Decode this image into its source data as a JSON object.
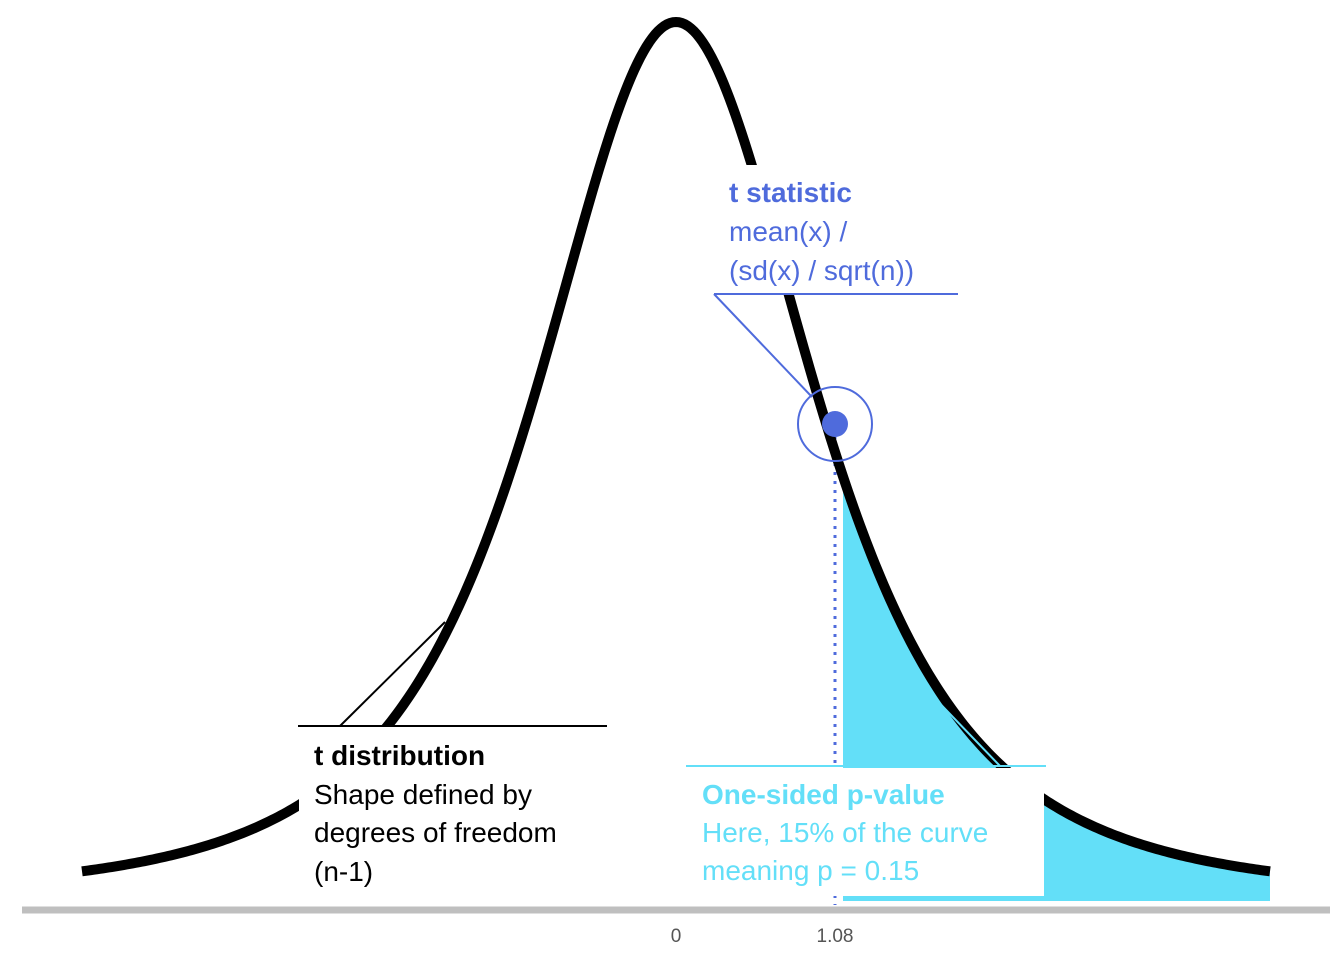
{
  "chart_data": {
    "type": "area",
    "distribution": "t",
    "x_ticks": [
      {
        "value": 0,
        "label": "0"
      },
      {
        "value": 1.08,
        "label": "1.08"
      }
    ],
    "t_statistic": 1.08,
    "p_value": 0.15,
    "shaded_region": "right tail beyond t statistic",
    "grid": false,
    "annotations": {
      "t_stat": {
        "title": "t statistic",
        "line1": "mean(x) /",
        "line2": "(sd(x) / sqrt(n))"
      },
      "dist": {
        "title": "t distribution",
        "line1": "Shape defined by",
        "line2": "degrees of freedom",
        "line3": "(n-1)"
      },
      "pval": {
        "title": "One-sided p-value",
        "line1": "Here, 15% of the curve",
        "line2": "meaning p = 0.15"
      }
    },
    "colors": {
      "curve": "#000000",
      "tail_fill": "#63dff8",
      "t_stat": "#4f6bdc",
      "p_value": "#63dff8",
      "axis": "#bfbfbf"
    }
  }
}
